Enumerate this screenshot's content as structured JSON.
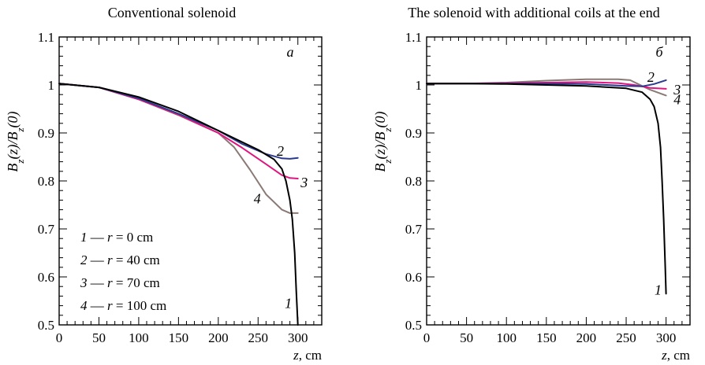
{
  "chart_data": [
    {
      "type": "line",
      "title": "Conventional solenoid",
      "panel_label": "a",
      "xlabel": "z, cm",
      "ylabel": "Bz(z)/Bz(0)",
      "xlim": [
        0,
        330
      ],
      "ylim": [
        0.5,
        1.1
      ],
      "xticks": [
        "0",
        "50",
        "100",
        "150",
        "200",
        "250",
        "300"
      ],
      "yticks": [
        "0.5",
        "0.6",
        "0.7",
        "0.8",
        "0.9",
        "1",
        "1.1"
      ],
      "grid": false,
      "legend": [
        {
          "num": "1",
          "text": " — r = 0 cm"
        },
        {
          "num": "2",
          "text": " — r = 40 cm"
        },
        {
          "num": "3",
          "text": " — r = 70 cm"
        },
        {
          "num": "4",
          "text": " — r = 100 cm"
        }
      ],
      "series": [
        {
          "label": "1",
          "color": "#000000",
          "x": [
            0,
            50,
            100,
            150,
            200,
            250,
            270,
            280,
            285,
            290,
            293,
            296,
            298,
            300
          ],
          "y": [
            1.003,
            0.995,
            0.975,
            0.945,
            0.905,
            0.865,
            0.845,
            0.825,
            0.8,
            0.76,
            0.72,
            0.65,
            0.57,
            0.5
          ]
        },
        {
          "label": "2",
          "color": "#2b3a8c",
          "x": [
            0,
            50,
            100,
            150,
            200,
            230,
            260,
            280,
            290,
            300
          ],
          "y": [
            1.003,
            0.995,
            0.972,
            0.94,
            0.905,
            0.877,
            0.856,
            0.847,
            0.846,
            0.848
          ]
        },
        {
          "label": "3",
          "color": "#e0157f",
          "x": [
            0,
            50,
            100,
            150,
            200,
            230,
            260,
            280,
            290,
            300
          ],
          "y": [
            1.003,
            0.995,
            0.97,
            0.938,
            0.9,
            0.869,
            0.835,
            0.812,
            0.806,
            0.805
          ]
        },
        {
          "label": "4",
          "color": "#8a7a76",
          "x": [
            0,
            50,
            100,
            150,
            200,
            220,
            240,
            260,
            280,
            290,
            300
          ],
          "y": [
            1.003,
            0.995,
            0.97,
            0.937,
            0.9,
            0.87,
            0.823,
            0.772,
            0.74,
            0.733,
            0.733
          ]
        }
      ],
      "curve_labels": [
        {
          "text": "1",
          "x": 288,
          "y": 0.545
        },
        {
          "text": "2",
          "x": 278,
          "y": 0.862
        },
        {
          "text": "3",
          "x": 308,
          "y": 0.797
        },
        {
          "text": "4",
          "x": 249,
          "y": 0.763
        }
      ]
    },
    {
      "type": "line",
      "title": "The solenoid with additional coils at the end",
      "panel_label": "б",
      "xlabel": "z, cm",
      "ylabel": "Bz(z)/Bz(0)",
      "xlim": [
        0,
        330
      ],
      "ylim": [
        0.5,
        1.1
      ],
      "xticks": [
        "0",
        "50",
        "100",
        "150",
        "200",
        "250",
        "300"
      ],
      "yticks": [
        "0.5",
        "0.6",
        "0.7",
        "0.8",
        "0.9",
        "1",
        "1.1"
      ],
      "grid": false,
      "series": [
        {
          "label": "1",
          "color": "#000000",
          "x": [
            0,
            50,
            100,
            150,
            200,
            250,
            270,
            280,
            285,
            290,
            293,
            295,
            297,
            299,
            300
          ],
          "y": [
            1.003,
            1.003,
            1.002,
            1.0,
            0.998,
            0.993,
            0.985,
            0.97,
            0.955,
            0.92,
            0.87,
            0.8,
            0.72,
            0.62,
            0.565
          ]
        },
        {
          "label": "2",
          "color": "#2b3a8c",
          "x": [
            0,
            50,
            100,
            150,
            200,
            250,
            270,
            285,
            300
          ],
          "y": [
            1.003,
            1.003,
            1.003,
            1.003,
            1.002,
            0.998,
            0.997,
            1.002,
            1.01
          ]
        },
        {
          "label": "3",
          "color": "#e0157f",
          "x": [
            0,
            50,
            100,
            150,
            200,
            240,
            260,
            280,
            300
          ],
          "y": [
            1.003,
            1.003,
            1.004,
            1.005,
            1.006,
            1.004,
            1.0,
            0.994,
            0.992
          ]
        },
        {
          "label": "4",
          "color": "#8a7a76",
          "x": [
            0,
            50,
            100,
            150,
            200,
            240,
            255,
            265,
            280,
            300
          ],
          "y": [
            1.003,
            1.003,
            1.005,
            1.009,
            1.012,
            1.012,
            1.01,
            1.002,
            0.99,
            0.978
          ]
        }
      ],
      "curve_labels": [
        {
          "text": "1",
          "x": 290,
          "y": 0.573
        },
        {
          "text": "2",
          "x": 281,
          "y": 1.016
        },
        {
          "text": "3",
          "x": 314,
          "y": 0.99
        },
        {
          "text": "4",
          "x": 314,
          "y": 0.97
        }
      ]
    }
  ]
}
